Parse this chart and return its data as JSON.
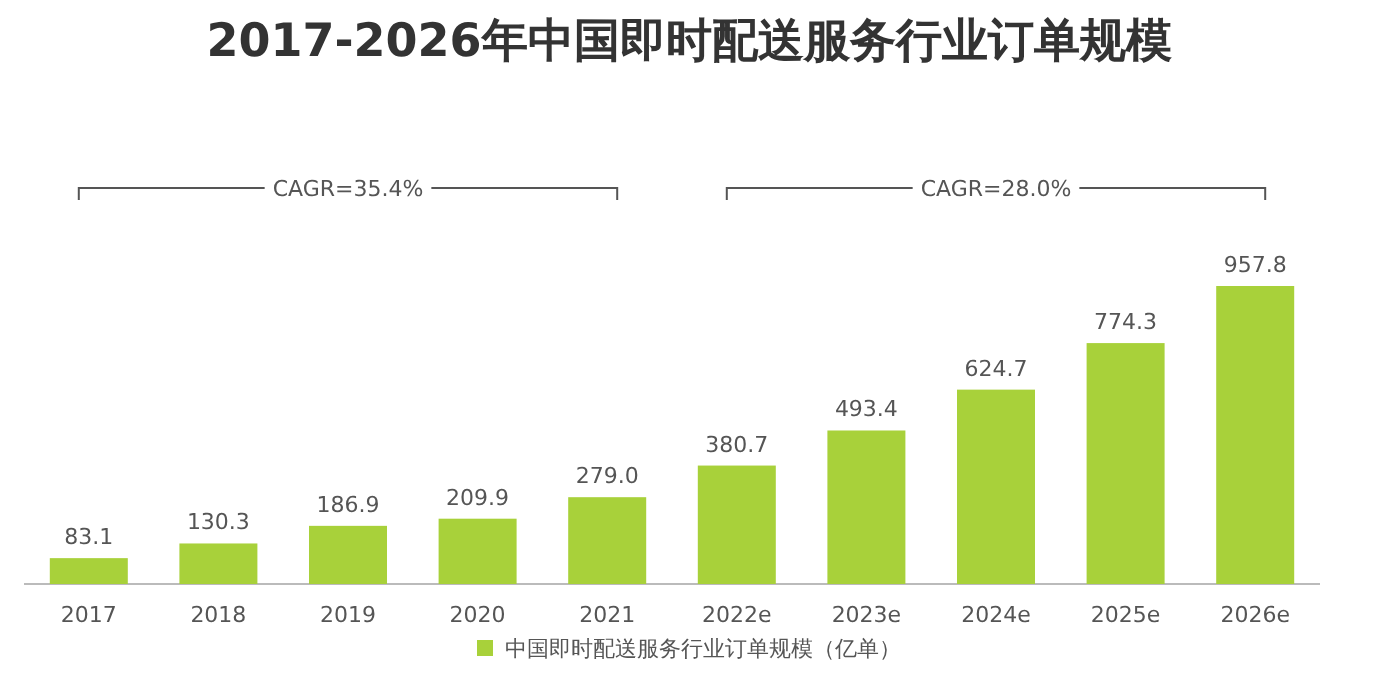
{
  "chart_data": {
    "type": "bar",
    "title": "2017-2026年中国即时配送服务行业订单规模",
    "categories": [
      "2017",
      "2018",
      "2019",
      "2020",
      "2021",
      "2022e",
      "2023e",
      "2024e",
      "2025e",
      "2026e"
    ],
    "series": [
      {
        "name": "中国即时配送服务行业订单规模（亿单）",
        "color": "#a8d13a",
        "values": [
          83.1,
          130.3,
          186.9,
          209.9,
          279.0,
          380.7,
          493.4,
          624.7,
          774.3,
          957.8
        ],
        "value_labels": [
          "83.1",
          "130.3",
          "186.9",
          "209.9",
          "279.0",
          "380.7",
          "493.4",
          "624.7",
          "774.3",
          "957.8"
        ]
      }
    ],
    "annotations": [
      "CAGR=35.4%",
      "CAGR=28.0%"
    ],
    "legend": "bottom"
  }
}
